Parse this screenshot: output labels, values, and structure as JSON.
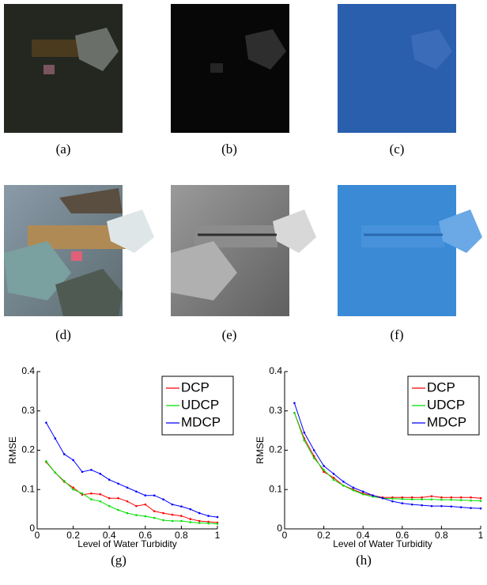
{
  "image_captions": [
    "(a)",
    "(b)",
    "(c)",
    "(d)",
    "(e)",
    "(f)"
  ],
  "chart_data": [
    {
      "type": "line",
      "caption": "(g)",
      "xlabel": "Level of Water Turbidity",
      "ylabel": "RMSE",
      "x": [
        0.05,
        0.1,
        0.15,
        0.2,
        0.25,
        0.3,
        0.35,
        0.4,
        0.45,
        0.5,
        0.55,
        0.6,
        0.65,
        0.7,
        0.75,
        0.8,
        0.85,
        0.9,
        0.95,
        1
      ],
      "xlim": [
        0,
        1
      ],
      "xticks": [
        0,
        0.2,
        0.4,
        0.6,
        0.8,
        1
      ],
      "ylim": [
        0,
        0.4
      ],
      "yticks": [
        0,
        0.1,
        0.2,
        0.3,
        0.4
      ],
      "legend": "upper right",
      "series": [
        {
          "name": "DCP",
          "color": "#ff0000",
          "values": [
            0.17,
            0.143,
            0.12,
            0.105,
            0.087,
            0.09,
            0.088,
            0.078,
            0.078,
            0.07,
            0.058,
            0.062,
            0.045,
            0.04,
            0.036,
            0.033,
            0.025,
            0.02,
            0.018,
            0.016
          ]
        },
        {
          "name": "UDCP",
          "color": "#00e000",
          "values": [
            0.172,
            0.143,
            0.122,
            0.1,
            0.09,
            0.075,
            0.07,
            0.058,
            0.048,
            0.04,
            0.035,
            0.032,
            0.028,
            0.022,
            0.02,
            0.02,
            0.017,
            0.015,
            0.014,
            0.013
          ]
        },
        {
          "name": "MDCP",
          "color": "#0000ff",
          "values": [
            0.27,
            0.23,
            0.19,
            0.175,
            0.145,
            0.15,
            0.14,
            0.125,
            0.115,
            0.105,
            0.095,
            0.085,
            0.085,
            0.075,
            0.062,
            0.057,
            0.05,
            0.04,
            0.033,
            0.03
          ]
        }
      ]
    },
    {
      "type": "line",
      "caption": "(h)",
      "xlabel": "Level of Water Turbidity",
      "ylabel": "RMSE",
      "x": [
        0.05,
        0.1,
        0.15,
        0.2,
        0.25,
        0.3,
        0.35,
        0.4,
        0.45,
        0.5,
        0.55,
        0.6,
        0.65,
        0.7,
        0.75,
        0.8,
        0.85,
        0.9,
        0.95,
        1
      ],
      "xlim": [
        0,
        1
      ],
      "xticks": [
        0,
        0.2,
        0.4,
        0.6,
        0.8,
        1
      ],
      "ylim": [
        0,
        0.4
      ],
      "yticks": [
        0,
        0.1,
        0.2,
        0.3,
        0.4
      ],
      "legend": "upper right",
      "series": [
        {
          "name": "DCP",
          "color": "#ff0000",
          "values": [
            0.295,
            0.23,
            0.185,
            0.145,
            0.13,
            0.11,
            0.1,
            0.09,
            0.085,
            0.08,
            0.08,
            0.08,
            0.08,
            0.08,
            0.083,
            0.08,
            0.08,
            0.08,
            0.08,
            0.078
          ]
        },
        {
          "name": "UDCP",
          "color": "#00e000",
          "values": [
            0.295,
            0.225,
            0.18,
            0.15,
            0.125,
            0.11,
            0.098,
            0.088,
            0.082,
            0.078,
            0.077,
            0.076,
            0.075,
            0.075,
            0.075,
            0.074,
            0.074,
            0.073,
            0.072,
            0.071
          ]
        },
        {
          "name": "MDCP",
          "color": "#0000ff",
          "values": [
            0.32,
            0.245,
            0.2,
            0.16,
            0.14,
            0.12,
            0.105,
            0.095,
            0.085,
            0.078,
            0.07,
            0.065,
            0.062,
            0.06,
            0.058,
            0.058,
            0.057,
            0.055,
            0.053,
            0.052
          ]
        }
      ]
    }
  ]
}
